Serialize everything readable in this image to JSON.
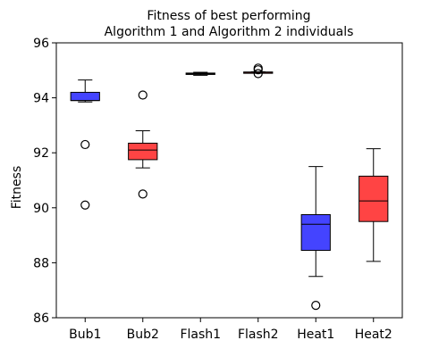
{
  "chart_data": {
    "type": "box",
    "title_lines": [
      "Fitness of best performing",
      "Algorithm 1 and Algorithm 2 individuals"
    ],
    "xlabel": "",
    "ylabel": "Fitness",
    "ylim": [
      86,
      96
    ],
    "yticks": [
      86,
      88,
      90,
      92,
      94,
      96
    ],
    "categories": [
      "Bub1",
      "Bub2",
      "Flash1",
      "Flash2",
      "Heat1",
      "Heat2"
    ],
    "colors": [
      "#4444ff",
      "#ff4444",
      "#4444ff",
      "#ff4444",
      "#4444ff",
      "#ff4444"
    ],
    "boxes": [
      {
        "whisker_low": 93.85,
        "q1": 93.9,
        "median": 93.9,
        "q3": 94.2,
        "whisker_high": 94.65,
        "outliers": [
          92.3,
          90.1
        ]
      },
      {
        "whisker_low": 91.45,
        "q1": 91.75,
        "median": 92.1,
        "q3": 92.35,
        "whisker_high": 92.8,
        "outliers": [
          94.1,
          90.5
        ]
      },
      {
        "whisker_low": 94.82,
        "q1": 94.85,
        "median": 94.88,
        "q3": 94.9,
        "whisker_high": 94.93,
        "outliers": []
      },
      {
        "whisker_low": 94.92,
        "q1": 94.92,
        "median": 94.93,
        "q3": 94.94,
        "whisker_high": 94.95,
        "outliers": [
          94.88,
          95.02,
          95.08
        ]
      },
      {
        "whisker_low": 87.5,
        "q1": 88.45,
        "median": 89.4,
        "q3": 89.75,
        "whisker_high": 91.5,
        "outliers": [
          86.45
        ]
      },
      {
        "whisker_low": 88.05,
        "q1": 89.5,
        "median": 90.25,
        "q3": 91.15,
        "whisker_high": 92.15,
        "outliers": []
      }
    ]
  }
}
